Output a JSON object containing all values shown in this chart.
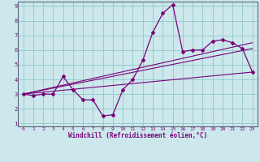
{
  "xlabel": "Windchill (Refroidissement éolien,°C)",
  "xlim": [
    -0.5,
    23.5
  ],
  "ylim": [
    0.8,
    9.3
  ],
  "xticks": [
    0,
    1,
    2,
    3,
    4,
    5,
    6,
    7,
    8,
    9,
    10,
    11,
    12,
    13,
    14,
    15,
    16,
    17,
    18,
    19,
    20,
    21,
    22,
    23
  ],
  "yticks": [
    1,
    2,
    3,
    4,
    5,
    6,
    7,
    8,
    9
  ],
  "bg_color": "#cce8ec",
  "line_color": "#7a007a",
  "grid_color": "#99cccc",
  "series": {
    "main": {
      "x": [
        0,
        1,
        2,
        3,
        4,
        5,
        6,
        7,
        8,
        9,
        10,
        11,
        12,
        13,
        14,
        15,
        16,
        17,
        18,
        19,
        20,
        21,
        22,
        23
      ],
      "y": [
        3.0,
        2.9,
        3.0,
        3.0,
        4.2,
        3.3,
        2.6,
        2.6,
        1.5,
        1.6,
        3.3,
        4.0,
        5.3,
        7.2,
        8.5,
        9.1,
        5.9,
        6.0,
        6.0,
        6.6,
        6.7,
        6.5,
        6.1,
        4.5
      ]
    },
    "linear1": {
      "x": [
        0,
        23
      ],
      "y": [
        3.0,
        4.5
      ]
    },
    "linear2": {
      "x": [
        0,
        23
      ],
      "y": [
        3.0,
        6.1
      ]
    },
    "linear3": {
      "x": [
        0,
        23
      ],
      "y": [
        3.0,
        6.5
      ]
    }
  }
}
